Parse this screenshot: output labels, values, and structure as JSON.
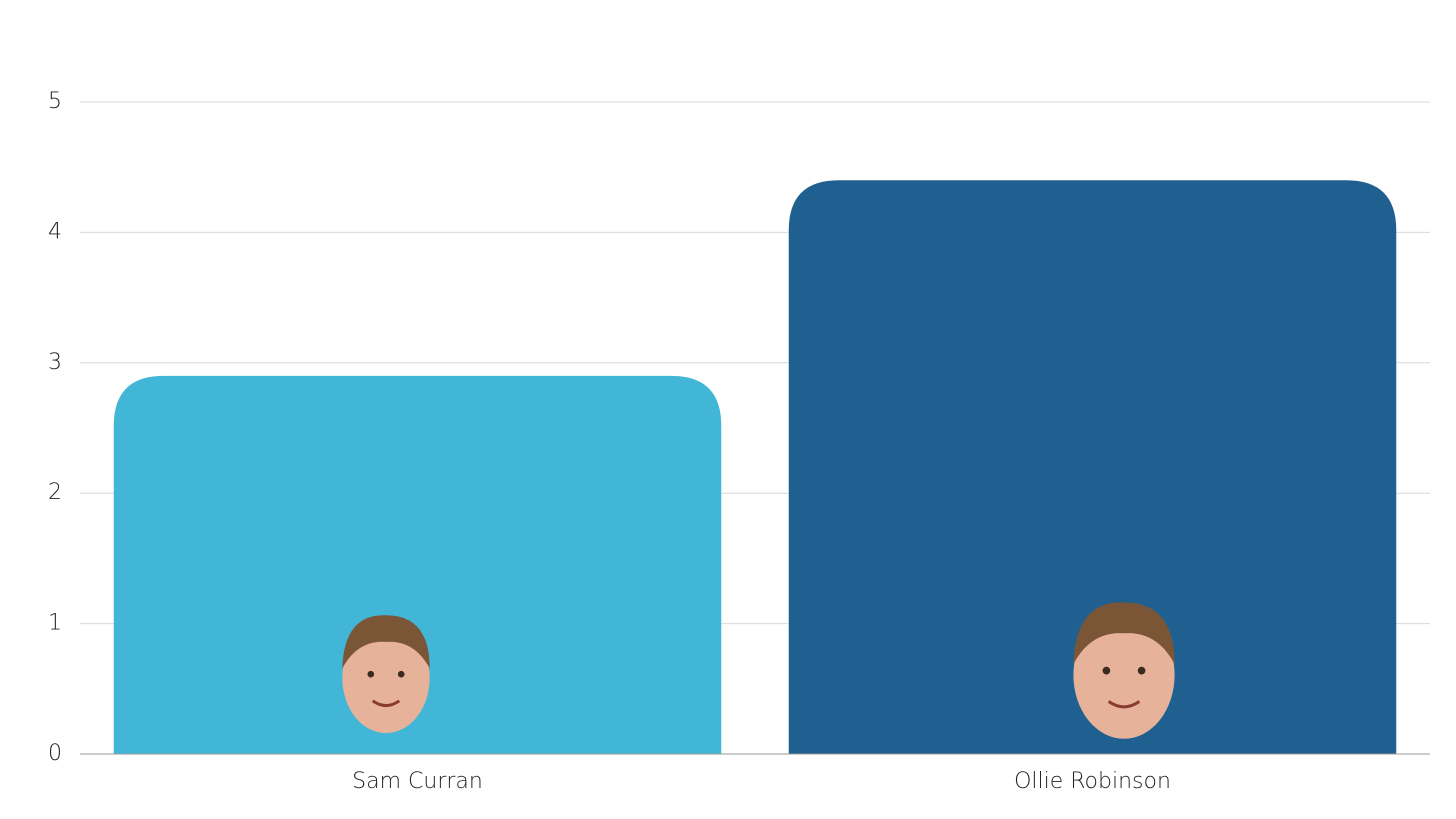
{
  "chart_data": {
    "type": "bar",
    "categories": [
      "Sam Curran",
      "Ollie Robinson"
    ],
    "values": [
      2.9,
      4.4
    ],
    "colors": [
      "#41b6d6",
      "#1f6090"
    ],
    "ylim": [
      0,
      5
    ],
    "yticks": [
      0,
      1,
      2,
      3,
      4,
      5
    ],
    "grid": true
  }
}
